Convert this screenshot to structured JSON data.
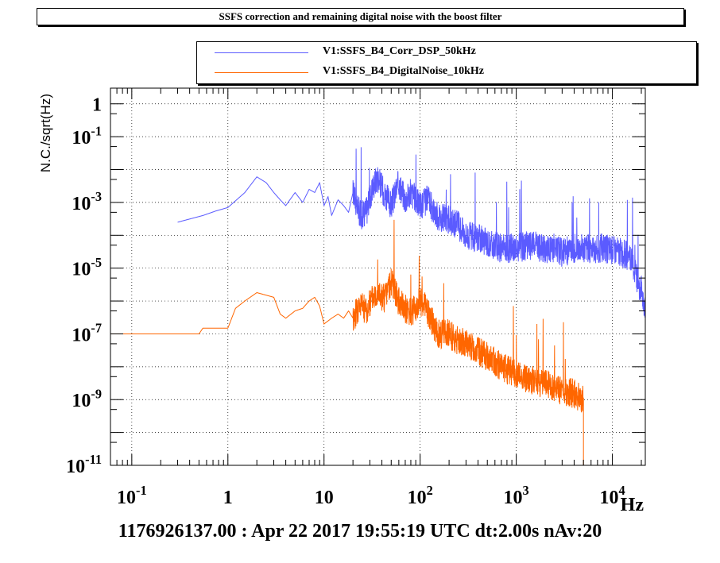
{
  "title": "SSFS correction and remaining digital noise with the boost filter",
  "footer": "1176926137.00 : Apr 22 2017 19:55:19 UTC dt:2.00s nAv:20",
  "colors": {
    "series1": "#5b5bff",
    "series2": "#ff6600",
    "grid": "#000000"
  },
  "chart_data": {
    "type": "line",
    "title": "SSFS correction and remaining digital noise with the boost filter",
    "xlabel": "Hz",
    "ylabel": "N.C./sqrt(Hz)",
    "xscale": "log",
    "yscale": "log",
    "xlim": [
      0.06,
      22000
    ],
    "ylim": [
      1e-11,
      3
    ],
    "grid": true,
    "legend_position": "top-right",
    "xticks": [
      "10^-1",
      "1",
      "10",
      "10^2",
      "10^3",
      "10^4"
    ],
    "yticks": [
      "10^-11",
      "10^-9",
      "10^-7",
      "10^-5",
      "10^-3",
      "10^-1",
      "1"
    ],
    "series": [
      {
        "name": "V1:SSFS_B4_Corr_DSP_50kHz",
        "color": "#5b5bff",
        "x": [
          0.3,
          0.55,
          0.75,
          1.0,
          1.5,
          2.0,
          2.5,
          3.0,
          3.5,
          4.0,
          5.0,
          6.0,
          7.0,
          8.0,
          9.0,
          10.0,
          11,
          12,
          14,
          16,
          18,
          20,
          24,
          28,
          32,
          36,
          42,
          50,
          60,
          70,
          80,
          100,
          120,
          150,
          200,
          250,
          300,
          400,
          500,
          700,
          1000,
          1400,
          2000,
          2700,
          3000,
          4000,
          5000,
          6000,
          7000,
          8000,
          10000,
          12000,
          14000,
          16000,
          18000,
          20000,
          22000
        ],
        "y": [
          0.00025,
          0.0004,
          0.00055,
          0.0007,
          0.002,
          0.006,
          0.004,
          0.002,
          0.0012,
          0.0008,
          0.002,
          0.001,
          0.0025,
          0.002,
          0.004,
          0.0008,
          0.0015,
          0.0004,
          0.0012,
          0.0008,
          0.0005,
          0.002,
          0.0004,
          0.0006,
          0.003,
          0.006,
          0.002,
          0.0008,
          0.004,
          0.0012,
          0.002,
          0.0008,
          0.0012,
          0.0004,
          0.0003,
          0.0002,
          0.0001,
          8e-05,
          6e-05,
          4e-05,
          4e-05,
          5e-05,
          4e-05,
          4e-05,
          3e-05,
          4e-05,
          4e-05,
          4e-05,
          4e-05,
          4e-05,
          3.5e-05,
          3e-05,
          2.5e-05,
          1.5e-05,
          5e-06,
          2e-06,
          6e-07
        ]
      },
      {
        "name": "V1:SSFS_B4_DigitalNoise_10kHz",
        "color": "#ff6600",
        "x": [
          0.06,
          0.5,
          0.55,
          1.0,
          1.2,
          1.5,
          2.0,
          3.0,
          3.5,
          4.0,
          5.0,
          6.0,
          7.0,
          8.0,
          9.0,
          10.0,
          12,
          14,
          16,
          18,
          20,
          24,
          28,
          32,
          36,
          42,
          50,
          60,
          70,
          80,
          100,
          120,
          150,
          200,
          250,
          300,
          400,
          500,
          700,
          1000,
          1400,
          2000,
          2700,
          3000,
          4000,
          4500,
          5000
        ],
        "y": [
          1e-07,
          1e-07,
          1.5e-07,
          1.5e-07,
          6e-07,
          1e-06,
          1.8e-06,
          1.3e-06,
          4e-07,
          3e-07,
          5e-07,
          6e-07,
          1e-06,
          1.3e-06,
          7e-07,
          2e-07,
          3e-07,
          4e-07,
          3e-07,
          5e-07,
          3e-07,
          8e-07,
          5e-07,
          1.4e-06,
          2e-06,
          1.2e-06,
          4e-06,
          1e-06,
          6e-07,
          4e-07,
          1e-06,
          5e-07,
          1e-07,
          1e-07,
          6e-08,
          5e-08,
          3e-08,
          2e-08,
          1e-08,
          6e-09,
          4e-09,
          3e-09,
          2e-09,
          2e-09,
          1.5e-09,
          1.2e-09,
          1e-09
        ]
      }
    ]
  }
}
